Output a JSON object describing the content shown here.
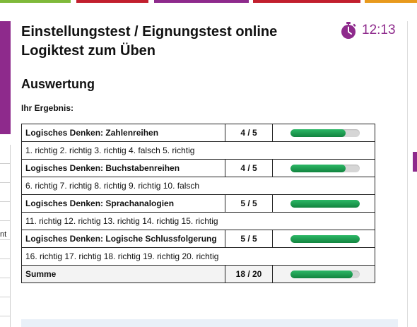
{
  "colors": {
    "accent": "#8e2a8c",
    "progress": "#1a9a4e",
    "top_bar": [
      "#7fb93a",
      "#c21f2e",
      "#8e2a8c",
      "#c21f2e",
      "#e89a1d"
    ]
  },
  "header": {
    "title_line1": "Einstellungstest / Eignungstest online",
    "title_line2": "Logiktest zum Üben",
    "timer_icon": "stopwatch-icon",
    "timer": "12:13"
  },
  "section": {
    "title": "Auswertung",
    "result_label": "Ihr Ergebnis:"
  },
  "left_fragment": "nt",
  "results": [
    {
      "category": "Logisches Denken: Zahlenreihen",
      "score": "4 / 5",
      "progress": 0.8,
      "details": "1. richtig 2. richtig 3. richtig 4. falsch 5. richtig"
    },
    {
      "category": "Logisches Denken: Buchstabenreihen",
      "score": "4 / 5",
      "progress": 0.8,
      "details": "6. richtig 7. richtig 8. richtig 9. richtig 10. falsch"
    },
    {
      "category": "Logisches Denken: Sprachanalogien",
      "score": "5 / 5",
      "progress": 1.0,
      "details": "11. richtig 12. richtig 13. richtig 14. richtig 15. richtig"
    },
    {
      "category": "Logisches Denken: Logische Schlussfolgerung",
      "score": "5 / 5",
      "progress": 1.0,
      "details": "16. richtig 17. richtig 18. richtig 19. richtig 20. richtig"
    }
  ],
  "total": {
    "label": "Summe",
    "score": "18 / 20",
    "progress": 0.9
  }
}
